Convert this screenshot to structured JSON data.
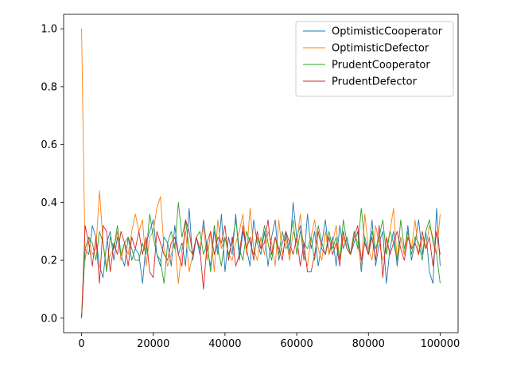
{
  "chart_data": {
    "type": "line",
    "title": "",
    "xlabel": "",
    "ylabel": "",
    "xlim": [
      -5000,
      105000
    ],
    "ylim": [
      -0.05,
      1.05
    ],
    "x_ticks": [
      0,
      20000,
      40000,
      60000,
      80000,
      100000
    ],
    "x_tick_labels": [
      "0",
      "20000",
      "40000",
      "60000",
      "80000",
      "100000"
    ],
    "y_ticks": [
      0.0,
      0.2,
      0.4,
      0.6,
      0.8,
      1.0
    ],
    "y_tick_labels": [
      "0.0",
      "0.2",
      "0.4",
      "0.6",
      "0.8",
      "1.0"
    ],
    "legend_position": "top-right",
    "grid": false,
    "x": [
      0,
      1000,
      2000,
      3000,
      4000,
      5000,
      6000,
      7000,
      8000,
      9000,
      10000,
      11000,
      12000,
      13000,
      14000,
      15000,
      16000,
      17000,
      18000,
      19000,
      20000,
      21000,
      22000,
      23000,
      24000,
      25000,
      26000,
      27000,
      28000,
      29000,
      30000,
      31000,
      32000,
      33000,
      34000,
      35000,
      36000,
      37000,
      38000,
      39000,
      40000,
      41000,
      42000,
      43000,
      44000,
      45000,
      46000,
      47000,
      48000,
      49000,
      50000,
      51000,
      52000,
      53000,
      54000,
      55000,
      56000,
      57000,
      58000,
      59000,
      60000,
      61000,
      62000,
      63000,
      64000,
      65000,
      66000,
      67000,
      68000,
      69000,
      70000,
      71000,
      72000,
      73000,
      74000,
      75000,
      76000,
      77000,
      78000,
      79000,
      80000,
      81000,
      82000,
      83000,
      84000,
      85000,
      86000,
      87000,
      88000,
      89000,
      90000,
      91000,
      92000,
      93000,
      94000,
      95000,
      96000,
      97000,
      98000,
      99000,
      100000
    ],
    "series": [
      {
        "name": "OptimisticCooperator",
        "color": "#1f77b4",
        "values": [
          0.0,
          0.24,
          0.22,
          0.32,
          0.28,
          0.18,
          0.14,
          0.26,
          0.3,
          0.2,
          0.28,
          0.22,
          0.18,
          0.28,
          0.2,
          0.24,
          0.22,
          0.12,
          0.26,
          0.3,
          0.34,
          0.22,
          0.18,
          0.28,
          0.26,
          0.18,
          0.32,
          0.22,
          0.26,
          0.18,
          0.38,
          0.2,
          0.28,
          0.22,
          0.34,
          0.24,
          0.18,
          0.3,
          0.22,
          0.36,
          0.16,
          0.28,
          0.22,
          0.36,
          0.2,
          0.3,
          0.24,
          0.18,
          0.34,
          0.26,
          0.22,
          0.3,
          0.18,
          0.28,
          0.34,
          0.2,
          0.26,
          0.3,
          0.22,
          0.4,
          0.28,
          0.32,
          0.2,
          0.36,
          0.24,
          0.3,
          0.18,
          0.26,
          0.34,
          0.22,
          0.28,
          0.18,
          0.32,
          0.24,
          0.28,
          0.22,
          0.26,
          0.3,
          0.16,
          0.28,
          0.22,
          0.34,
          0.18,
          0.26,
          0.3,
          0.12,
          0.24,
          0.3,
          0.18,
          0.28,
          0.22,
          0.32,
          0.2,
          0.26,
          0.34,
          0.22,
          0.3,
          0.16,
          0.12,
          0.38,
          0.18
        ]
      },
      {
        "name": "OptimisticDefector",
        "color": "#ff7f0e",
        "values": [
          1.0,
          0.2,
          0.28,
          0.22,
          0.24,
          0.44,
          0.26,
          0.18,
          0.22,
          0.24,
          0.3,
          0.2,
          0.26,
          0.22,
          0.3,
          0.36,
          0.3,
          0.34,
          0.18,
          0.28,
          0.3,
          0.38,
          0.42,
          0.24,
          0.18,
          0.22,
          0.26,
          0.12,
          0.24,
          0.3,
          0.16,
          0.22,
          0.28,
          0.24,
          0.32,
          0.2,
          0.3,
          0.16,
          0.34,
          0.24,
          0.28,
          0.22,
          0.2,
          0.26,
          0.3,
          0.36,
          0.22,
          0.38,
          0.24,
          0.2,
          0.28,
          0.22,
          0.3,
          0.26,
          0.18,
          0.34,
          0.22,
          0.28,
          0.2,
          0.3,
          0.26,
          0.36,
          0.22,
          0.18,
          0.28,
          0.34,
          0.24,
          0.2,
          0.3,
          0.22,
          0.26,
          0.32,
          0.2,
          0.28,
          0.24,
          0.22,
          0.3,
          0.26,
          0.18,
          0.36,
          0.24,
          0.2,
          0.32,
          0.26,
          0.2,
          0.24,
          0.3,
          0.38,
          0.2,
          0.28,
          0.22,
          0.3,
          0.24,
          0.34,
          0.22,
          0.28,
          0.24,
          0.32,
          0.28,
          0.22,
          0.36
        ]
      },
      {
        "name": "PrudentCooperator",
        "color": "#2ca02c",
        "values": [
          0.0,
          0.24,
          0.28,
          0.26,
          0.2,
          0.3,
          0.26,
          0.16,
          0.28,
          0.24,
          0.32,
          0.22,
          0.26,
          0.28,
          0.24,
          0.2,
          0.2,
          0.26,
          0.22,
          0.36,
          0.28,
          0.22,
          0.2,
          0.12,
          0.26,
          0.3,
          0.24,
          0.4,
          0.28,
          0.34,
          0.24,
          0.22,
          0.28,
          0.3,
          0.22,
          0.26,
          0.16,
          0.32,
          0.24,
          0.18,
          0.28,
          0.22,
          0.26,
          0.34,
          0.24,
          0.2,
          0.3,
          0.26,
          0.22,
          0.28,
          0.24,
          0.32,
          0.26,
          0.2,
          0.28,
          0.22,
          0.3,
          0.24,
          0.26,
          0.34,
          0.22,
          0.3,
          0.26,
          0.24,
          0.28,
          0.2,
          0.32,
          0.26,
          0.22,
          0.3,
          0.24,
          0.28,
          0.2,
          0.34,
          0.26,
          0.22,
          0.3,
          0.24,
          0.38,
          0.26,
          0.22,
          0.3,
          0.24,
          0.28,
          0.34,
          0.22,
          0.3,
          0.26,
          0.2,
          0.34,
          0.24,
          0.3,
          0.22,
          0.28,
          0.26,
          0.2,
          0.3,
          0.34,
          0.26,
          0.22,
          0.12
        ]
      },
      {
        "name": "PrudentDefector",
        "color": "#d62728",
        "values": [
          0.0,
          0.32,
          0.26,
          0.18,
          0.28,
          0.12,
          0.32,
          0.3,
          0.16,
          0.26,
          0.22,
          0.3,
          0.26,
          0.18,
          0.28,
          0.24,
          0.3,
          0.22,
          0.28,
          0.16,
          0.14,
          0.3,
          0.26,
          0.22,
          0.2,
          0.26,
          0.28,
          0.22,
          0.18,
          0.34,
          0.3,
          0.22,
          0.28,
          0.24,
          0.1,
          0.26,
          0.3,
          0.22,
          0.28,
          0.26,
          0.32,
          0.2,
          0.28,
          0.18,
          0.22,
          0.32,
          0.24,
          0.28,
          0.2,
          0.3,
          0.24,
          0.26,
          0.34,
          0.22,
          0.28,
          0.24,
          0.2,
          0.3,
          0.26,
          0.22,
          0.28,
          0.18,
          0.26,
          0.16,
          0.16,
          0.22,
          0.3,
          0.24,
          0.22,
          0.28,
          0.22,
          0.26,
          0.18,
          0.3,
          0.24,
          0.22,
          0.28,
          0.32,
          0.2,
          0.26,
          0.22,
          0.28,
          0.2,
          0.32,
          0.14,
          0.28,
          0.22,
          0.26,
          0.3,
          0.24,
          0.2,
          0.28,
          0.24,
          0.26,
          0.22,
          0.3,
          0.24,
          0.28,
          0.18,
          0.3,
          0.22
        ]
      }
    ]
  }
}
